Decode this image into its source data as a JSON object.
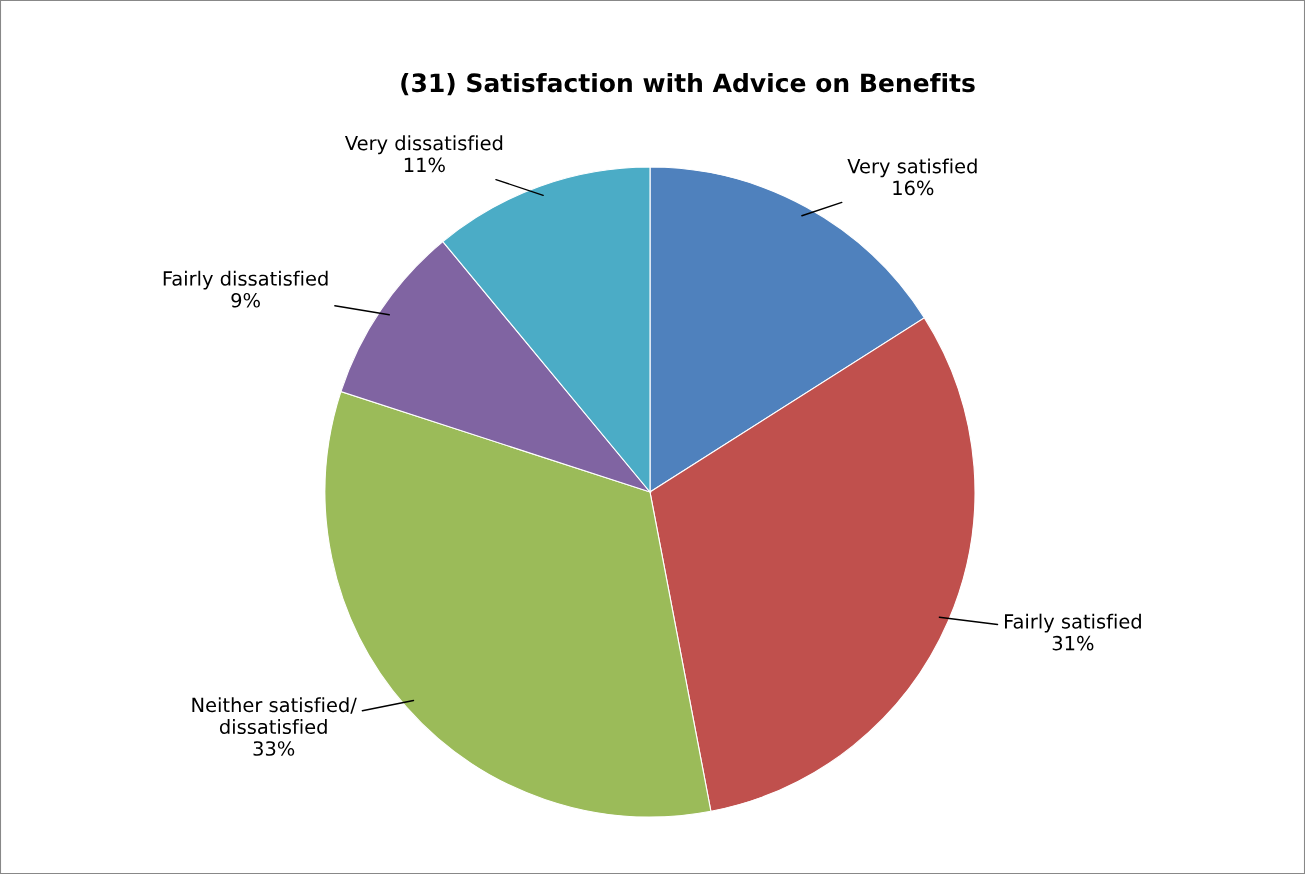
{
  "chart_data": {
    "type": "pie",
    "title": "(31) Satisfaction with Advice on Benefits",
    "categories": [
      "Very satisfied",
      "Fairly satisfied",
      "Neither satisfied/\ndissatisfied",
      "Fairly dissatisfied",
      "Very dissatisfied"
    ],
    "values": [
      16,
      31,
      33,
      9,
      11
    ],
    "colors": [
      "#4f81bd",
      "#c0504d",
      "#9bbb59",
      "#8064a2",
      "#4bacc6"
    ],
    "value_labels": [
      "16%",
      "31%",
      "33%",
      "9%",
      "11%"
    ]
  }
}
